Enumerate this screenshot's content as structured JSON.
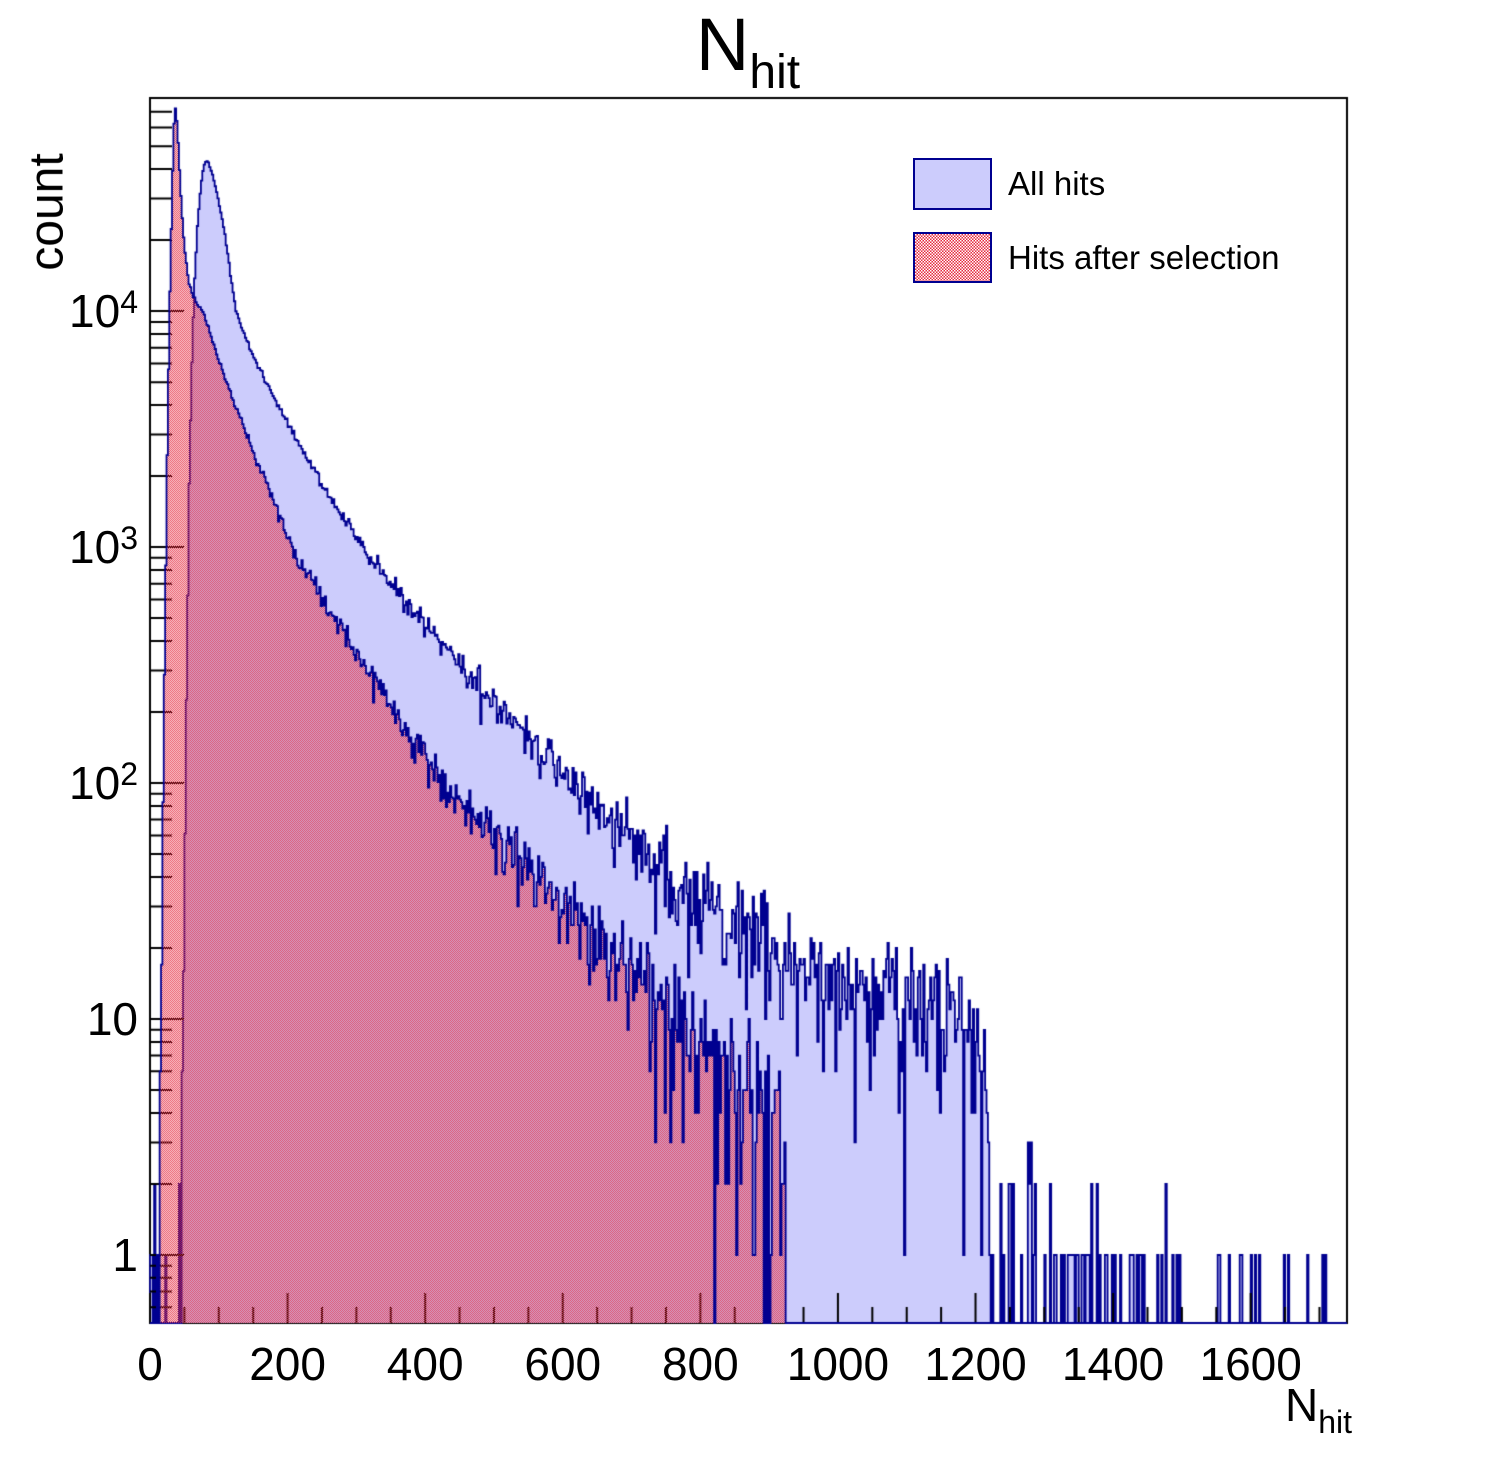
{
  "title": {
    "main": "N",
    "sub": "hit"
  },
  "y_axis": {
    "title": "count",
    "ticks": [
      {
        "value": 1,
        "base": "1",
        "sup": ""
      },
      {
        "value": 10,
        "base": "10",
        "sup": ""
      },
      {
        "value": 100,
        "base": "10",
        "sup": "2"
      },
      {
        "value": 1000,
        "base": "10",
        "sup": "3"
      },
      {
        "value": 10000,
        "base": "10",
        "sup": "4"
      }
    ]
  },
  "x_axis": {
    "title_main": "N",
    "title_sub": "hit",
    "ticks": [
      {
        "value": 0,
        "label": "0"
      },
      {
        "value": 200,
        "label": "200"
      },
      {
        "value": 400,
        "label": "400"
      },
      {
        "value": 600,
        "label": "600"
      },
      {
        "value": 800,
        "label": "800"
      },
      {
        "value": 1000,
        "label": "1000"
      },
      {
        "value": 1200,
        "label": "1200"
      },
      {
        "value": 1400,
        "label": "1400"
      },
      {
        "value": 1600,
        "label": "1600"
      }
    ]
  },
  "legend": {
    "entries": [
      {
        "label": "All hits",
        "swatch": "blue"
      },
      {
        "label": "Hits after selection",
        "swatch": "red"
      }
    ]
  },
  "colors": {
    "blue_fill": "#ccccfc",
    "red_fill": "#e62b3f",
    "outline": "#000090",
    "frame": "#000000",
    "text": "#000000",
    "background": "#ffffff"
  },
  "chart_data": {
    "type": "bar",
    "subtype": "overlaid-step-histograms-log-y",
    "title": "N_hit",
    "xlabel": "N_hit",
    "ylabel": "count",
    "x_range": [
      0,
      1740
    ],
    "y_range": [
      0.515,
      80000
    ],
    "y_scale": "log",
    "bin_width": 2,
    "x_major_step": 200,
    "x_minor_step": 50,
    "grid": false,
    "legend_position": "top-right",
    "series": [
      {
        "name": "All hits",
        "style": "solid-lavender-fill-navy-outline",
        "seed": 91,
        "sd_factor": 1.25,
        "tail_boost": [
          1222,
          1380,
          0.35
        ],
        "cutoff": 1740,
        "anchors": [
          [
            1,
            0.6
          ],
          [
            6,
            0.8
          ],
          [
            10,
            0.4
          ],
          [
            13,
            0.12
          ],
          [
            40,
            0.12
          ],
          [
            44,
            1
          ],
          [
            48,
            8
          ],
          [
            51,
            60
          ],
          [
            54,
            400
          ],
          [
            57,
            1800
          ],
          [
            60,
            4800
          ],
          [
            64,
            12000
          ],
          [
            69,
            23000
          ],
          [
            74,
            34000
          ],
          [
            78,
            41000
          ],
          [
            82,
            43500
          ],
          [
            86,
            42000
          ],
          [
            92,
            37000
          ],
          [
            100,
            29000
          ],
          [
            110,
            20500
          ],
          [
            118,
            13500
          ],
          [
            125,
            10000
          ],
          [
            136,
            8100
          ],
          [
            150,
            6500
          ],
          [
            166,
            5200
          ],
          [
            184,
            4100
          ],
          [
            205,
            3150
          ],
          [
            228,
            2400
          ],
          [
            252,
            1830
          ],
          [
            276,
            1400
          ],
          [
            295,
            1150
          ],
          [
            320,
            900
          ],
          [
            350,
            700
          ],
          [
            385,
            530
          ],
          [
            420,
            405
          ],
          [
            460,
            300
          ],
          [
            500,
            225
          ],
          [
            530,
            180
          ],
          [
            560,
            145
          ],
          [
            600,
            110
          ],
          [
            640,
            85
          ],
          [
            690,
            62
          ],
          [
            740,
            46
          ],
          [
            800,
            33
          ],
          [
            860,
            24
          ],
          [
            920,
            18
          ],
          [
            980,
            14.5
          ],
          [
            1040,
            13
          ],
          [
            1100,
            12.5
          ],
          [
            1160,
            10.5
          ],
          [
            1195,
            8.5
          ],
          [
            1207,
            7
          ],
          [
            1213,
            4
          ],
          [
            1219,
            1.5
          ],
          [
            1226,
            0.45
          ],
          [
            1300,
            0.35
          ],
          [
            1380,
            0.22
          ],
          [
            1480,
            0.14
          ],
          [
            1600,
            0.09
          ],
          [
            1740,
            0.04
          ]
        ]
      },
      {
        "name": "Hits after selection",
        "style": "red-checker-fill-navy-outline",
        "seed": 17,
        "sd_factor": 1.2,
        "cutoff": 924,
        "anchors": [
          [
            10,
            0.4
          ],
          [
            14,
            3
          ],
          [
            17,
            25
          ],
          [
            20,
            160
          ],
          [
            23,
            900
          ],
          [
            26,
            4000
          ],
          [
            29,
            12000
          ],
          [
            32,
            30000
          ],
          [
            34,
            52000
          ],
          [
            36,
            75000
          ],
          [
            38,
            70000
          ],
          [
            40,
            58000
          ],
          [
            43,
            40000
          ],
          [
            46,
            27000
          ],
          [
            50,
            18500
          ],
          [
            55,
            14000
          ],
          [
            60,
            12200
          ],
          [
            66,
            11000
          ],
          [
            72,
            10400
          ],
          [
            77,
            10000
          ],
          [
            86,
            8300
          ],
          [
            96,
            6700
          ],
          [
            108,
            5300
          ],
          [
            122,
            4100
          ],
          [
            138,
            3100
          ],
          [
            156,
            2300
          ],
          [
            176,
            1700
          ],
          [
            204,
            1000
          ],
          [
            230,
            760
          ],
          [
            260,
            550
          ],
          [
            290,
            400
          ],
          [
            320,
            293
          ],
          [
            355,
            203
          ],
          [
            390,
            140
          ],
          [
            422,
            100
          ],
          [
            460,
            77
          ],
          [
            500,
            59
          ],
          [
            550,
            42
          ],
          [
            600,
            30
          ],
          [
            650,
            21.6
          ],
          [
            700,
            15.5
          ],
          [
            760,
            10
          ],
          [
            800,
            7.6
          ],
          [
            850,
            5.4
          ],
          [
            900,
            3.8
          ],
          [
            924,
            3.0
          ]
        ]
      }
    ]
  }
}
